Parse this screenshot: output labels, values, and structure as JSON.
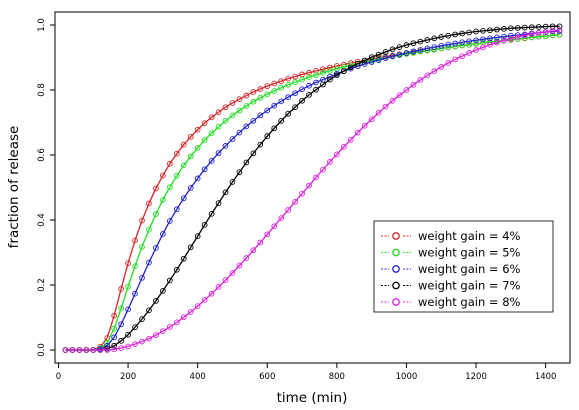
{
  "chart_data": {
    "type": "line",
    "xlabel": "time (min)",
    "ylabel": "fraction of release",
    "xlim": [
      -10,
      1470
    ],
    "ylim": [
      -0.04,
      1.04
    ],
    "xticks": [
      0,
      200,
      400,
      600,
      800,
      1000,
      1200,
      1400
    ],
    "yticks": [
      0.0,
      0.2,
      0.4,
      0.6,
      0.8,
      1.0
    ],
    "ytick_labels": [
      "0.0",
      "0.2",
      "0.4",
      "0.6",
      "0.8",
      "1.0"
    ],
    "grid": false,
    "legend_position": "center-right",
    "x": [
      20,
      40,
      60,
      80,
      100,
      120,
      140,
      160,
      180,
      200,
      220,
      240,
      260,
      280,
      300,
      320,
      340,
      360,
      380,
      400,
      420,
      440,
      460,
      480,
      500,
      520,
      540,
      560,
      580,
      600,
      620,
      640,
      660,
      680,
      700,
      720,
      740,
      760,
      780,
      800,
      820,
      840,
      860,
      880,
      900,
      920,
      940,
      960,
      980,
      1000,
      1020,
      1040,
      1060,
      1080,
      1100,
      1120,
      1140,
      1160,
      1180,
      1200,
      1220,
      1240,
      1260,
      1280,
      1300,
      1320,
      1340,
      1360,
      1380,
      1400,
      1420,
      1440
    ],
    "series": [
      {
        "name": "weight gain = 4%",
        "color": "#d62728",
        "values": [
          0.0,
          0.0,
          0.0,
          0.0,
          0.0,
          0.01,
          0.037,
          0.106,
          0.188,
          0.267,
          0.337,
          0.398,
          0.451,
          0.497,
          0.537,
          0.573,
          0.604,
          0.632,
          0.656,
          0.678,
          0.698,
          0.716,
          0.732,
          0.747,
          0.76,
          0.772,
          0.783,
          0.794,
          0.803,
          0.812,
          0.82,
          0.827,
          0.835,
          0.841,
          0.848,
          0.853,
          0.859,
          0.864,
          0.869,
          0.874,
          0.878,
          0.883,
          0.887,
          0.891,
          0.895,
          0.899,
          0.903,
          0.906,
          0.91,
          0.913,
          0.916,
          0.919,
          0.922,
          0.925,
          0.928,
          0.931,
          0.934,
          0.937,
          0.939,
          0.942,
          0.945,
          0.947,
          0.95,
          0.952,
          0.954,
          0.957,
          0.959,
          0.962,
          0.964,
          0.966,
          0.968,
          0.97
        ]
      },
      {
        "name": "weight gain = 5%",
        "color": "#22dd22",
        "values": [
          0.0,
          0.0,
          0.0,
          0.0,
          0.0,
          0.005,
          0.022,
          0.066,
          0.128,
          0.195,
          0.258,
          0.317,
          0.37,
          0.418,
          0.462,
          0.501,
          0.536,
          0.568,
          0.596,
          0.622,
          0.646,
          0.667,
          0.687,
          0.705,
          0.722,
          0.737,
          0.751,
          0.764,
          0.776,
          0.787,
          0.797,
          0.807,
          0.816,
          0.824,
          0.832,
          0.84,
          0.846,
          0.853,
          0.859,
          0.865,
          0.871,
          0.876,
          0.881,
          0.886,
          0.89,
          0.895,
          0.899,
          0.903,
          0.907,
          0.911,
          0.914,
          0.918,
          0.921,
          0.924,
          0.928,
          0.931,
          0.934,
          0.937,
          0.939,
          0.942,
          0.945,
          0.948,
          0.95,
          0.953,
          0.955,
          0.957,
          0.96,
          0.962,
          0.964,
          0.966,
          0.968,
          0.97
        ]
      },
      {
        "name": "weight gain = 6%",
        "color": "#2222cc",
        "values": [
          0.0,
          0.0,
          0.0,
          0.0,
          0.0,
          0.003,
          0.013,
          0.039,
          0.079,
          0.125,
          0.173,
          0.222,
          0.269,
          0.314,
          0.357,
          0.397,
          0.433,
          0.467,
          0.499,
          0.528,
          0.556,
          0.582,
          0.606,
          0.628,
          0.649,
          0.669,
          0.688,
          0.705,
          0.722,
          0.737,
          0.752,
          0.765,
          0.778,
          0.79,
          0.802,
          0.813,
          0.823,
          0.832,
          0.841,
          0.85,
          0.858,
          0.866,
          0.873,
          0.88,
          0.886,
          0.892,
          0.898,
          0.904,
          0.909,
          0.914,
          0.919,
          0.923,
          0.928,
          0.932,
          0.936,
          0.94,
          0.943,
          0.947,
          0.95,
          0.953,
          0.956,
          0.959,
          0.962,
          0.964,
          0.967,
          0.969,
          0.971,
          0.974,
          0.976,
          0.978,
          0.98,
          0.981
        ]
      },
      {
        "name": "weight gain = 7%",
        "color": "#000000",
        "values": [
          0.0,
          0.0,
          0.0,
          0.0,
          0.0,
          0.0,
          0.004,
          0.013,
          0.028,
          0.047,
          0.07,
          0.095,
          0.122,
          0.151,
          0.182,
          0.214,
          0.247,
          0.281,
          0.316,
          0.35,
          0.385,
          0.419,
          0.452,
          0.485,
          0.517,
          0.547,
          0.577,
          0.605,
          0.632,
          0.658,
          0.682,
          0.705,
          0.727,
          0.747,
          0.767,
          0.785,
          0.801,
          0.817,
          0.832,
          0.846,
          0.858,
          0.87,
          0.881,
          0.891,
          0.901,
          0.909,
          0.917,
          0.925,
          0.932,
          0.938,
          0.944,
          0.949,
          0.954,
          0.959,
          0.963,
          0.967,
          0.971,
          0.974,
          0.977,
          0.98,
          0.982,
          0.984,
          0.986,
          0.988,
          0.99,
          0.991,
          0.992,
          0.993,
          0.994,
          0.995,
          0.996,
          0.996
        ]
      },
      {
        "name": "weight gain = 8%",
        "color": "#dd22dd",
        "values": [
          0.0,
          0.0,
          0.0,
          0.0,
          0.0,
          0.0,
          0.0,
          0.002,
          0.006,
          0.011,
          0.018,
          0.026,
          0.035,
          0.046,
          0.058,
          0.071,
          0.085,
          0.101,
          0.117,
          0.135,
          0.154,
          0.173,
          0.194,
          0.215,
          0.237,
          0.26,
          0.283,
          0.307,
          0.331,
          0.356,
          0.381,
          0.406,
          0.431,
          0.456,
          0.481,
          0.506,
          0.531,
          0.555,
          0.579,
          0.602,
          0.625,
          0.647,
          0.669,
          0.69,
          0.71,
          0.73,
          0.749,
          0.767,
          0.784,
          0.8,
          0.816,
          0.831,
          0.845,
          0.858,
          0.871,
          0.883,
          0.894,
          0.904,
          0.914,
          0.923,
          0.931,
          0.939,
          0.946,
          0.952,
          0.958,
          0.963,
          0.968,
          0.972,
          0.976,
          0.979,
          0.982,
          0.984
        ]
      }
    ]
  }
}
